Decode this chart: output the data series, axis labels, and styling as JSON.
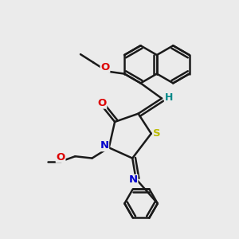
{
  "background_color": "#ebebeb",
  "bond_color": "#1a1a1a",
  "bond_width": 1.8,
  "atom_colors": {
    "O": "#dd0000",
    "N": "#0000cc",
    "S": "#bbbb00",
    "H": "#008888",
    "C": "#1a1a1a"
  },
  "figsize": [
    3.0,
    3.0
  ],
  "dpi": 100,
  "xlim": [
    0,
    10
  ],
  "ylim": [
    0,
    10
  ]
}
